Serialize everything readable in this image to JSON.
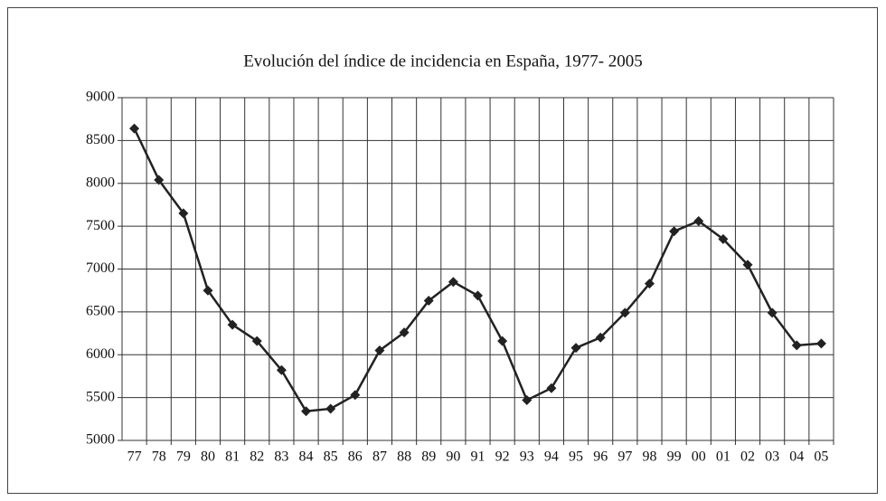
{
  "chart_data": {
    "type": "line",
    "title": "Evolución del índice de incidencia en España, 1977- 2005",
    "categories": [
      "77",
      "78",
      "79",
      "80",
      "81",
      "82",
      "83",
      "84",
      "85",
      "86",
      "87",
      "88",
      "89",
      "90",
      "91",
      "92",
      "93",
      "94",
      "95",
      "96",
      "97",
      "98",
      "99",
      "00",
      "01",
      "02",
      "03",
      "04",
      "05"
    ],
    "series": [
      {
        "name": null,
        "color": "#222222",
        "values": [
          8640,
          8040,
          7650,
          6750,
          6350,
          6160,
          5820,
          5340,
          5370,
          5530,
          6050,
          6260,
          6630,
          6850,
          6690,
          6160,
          5470,
          5610,
          6080,
          6200,
          6490,
          6830,
          7440,
          7560,
          7350,
          7050,
          6490,
          6110,
          6130
        ]
      }
    ],
    "ylim": [
      5000,
      9000
    ],
    "yticks": [
      5000,
      5500,
      6000,
      6500,
      7000,
      7500,
      8000,
      8500,
      9000
    ],
    "grid": true
  }
}
